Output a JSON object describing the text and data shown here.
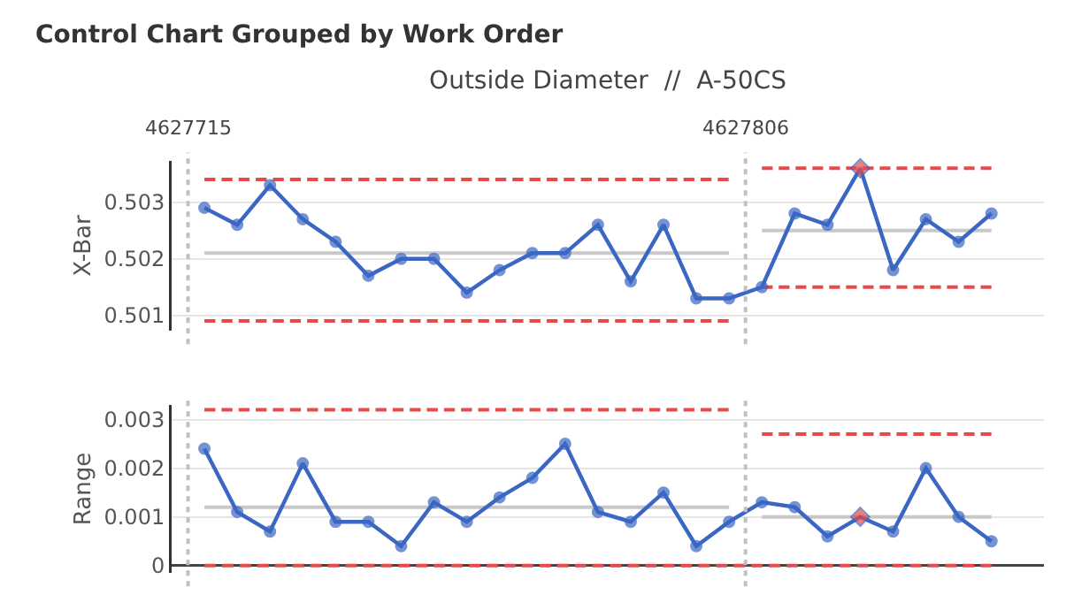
{
  "chart_data": [
    {
      "type": "line",
      "title": "Control Chart Grouped by Work Order",
      "subtitle": "Outside Diameter  //  A-50CS",
      "ylabel": "X-Bar",
      "ylim": [
        0.50073,
        0.50373
      ],
      "yticks": [
        0.501,
        0.502,
        0.503
      ],
      "grid": "y",
      "tick_labels": "y",
      "annotations": [
        "4627715",
        "4627806"
      ],
      "categories": [
        null,
        null,
        null,
        null,
        null,
        null,
        null,
        null,
        null,
        null,
        null,
        null,
        null,
        null,
        null,
        null,
        null,
        null,
        null,
        null,
        null,
        null,
        null,
        null,
        null
      ],
      "series": [
        {
          "type": "step",
          "color": "#e84a4a",
          "line_style": "dashed",
          "values": [
            0.5034,
            0.5034,
            0.5034,
            0.5034,
            0.5034,
            0.5034,
            0.5034,
            0.5034,
            0.5034,
            0.5034,
            0.5034,
            0.5034,
            0.5034,
            0.5034,
            0.5034,
            0.5034,
            0.5034,
            null,
            null,
            null,
            null,
            null,
            null,
            null,
            null
          ]
        },
        {
          "type": "step",
          "color": "#e84a4a",
          "line_style": "dashed",
          "values": [
            0.5009,
            0.5009,
            0.5009,
            0.5009,
            0.5009,
            0.5009,
            0.5009,
            0.5009,
            0.5009,
            0.5009,
            0.5009,
            0.5009,
            0.5009,
            0.5009,
            0.5009,
            0.5009,
            0.5009,
            null,
            null,
            null,
            null,
            null,
            null,
            null,
            null
          ]
        },
        {
          "type": "step",
          "color": "#c8c8c8",
          "line_style": "solid",
          "values": [
            0.5021,
            0.5021,
            0.5021,
            0.5021,
            0.5021,
            0.5021,
            0.5021,
            0.5021,
            0.5021,
            0.5021,
            0.5021,
            0.5021,
            0.5021,
            0.5021,
            0.5021,
            0.5021,
            0.5021,
            null,
            null,
            null,
            null,
            null,
            null,
            null,
            null
          ]
        },
        {
          "type": "step",
          "color": "#e84a4a",
          "line_style": "dashed",
          "values": [
            null,
            null,
            null,
            null,
            null,
            null,
            null,
            null,
            null,
            null,
            null,
            null,
            null,
            null,
            null,
            null,
            null,
            0.5036,
            0.5036,
            0.5036,
            0.5036,
            0.5036,
            0.5036,
            0.5036,
            0.5036
          ]
        },
        {
          "type": "step",
          "color": "#e84a4a",
          "line_style": "dashed",
          "values": [
            null,
            null,
            null,
            null,
            null,
            null,
            null,
            null,
            null,
            null,
            null,
            null,
            null,
            null,
            null,
            null,
            null,
            0.5015,
            0.5015,
            0.5015,
            0.5015,
            0.5015,
            0.5015,
            0.5015,
            0.5015
          ]
        },
        {
          "type": "step",
          "color": "#c8c8c8",
          "line_style": "solid",
          "values": [
            null,
            null,
            null,
            null,
            null,
            null,
            null,
            null,
            null,
            null,
            null,
            null,
            null,
            null,
            null,
            null,
            null,
            0.5025,
            0.5025,
            0.5025,
            0.5025,
            0.5025,
            0.5025,
            0.5025,
            0.5025
          ]
        },
        {
          "color": "#3a66c4",
          "line_style": "solid",
          "marker": "circle",
          "values": [
            0.5029,
            0.5026,
            0.5033,
            0.5027,
            0.5023,
            0.5017,
            0.502,
            0.502,
            0.5014,
            0.5018,
            0.5021,
            0.5021,
            0.5026,
            0.5016,
            0.5026,
            0.5013,
            0.5013,
            0.5015,
            0.5028,
            0.5026,
            0.5036,
            0.5018,
            0.5027,
            0.5023,
            0.5028
          ],
          "colors": [
            "#3a66c4",
            "#3a66c4",
            "#3a66c4",
            "#3a66c4",
            "#3a66c4",
            "#3a66c4",
            "#3a66c4",
            "#3a66c4",
            "#3a66c4",
            "#3a66c4",
            "#3a66c4",
            "#3a66c4",
            "#3a66c4",
            "#3a66c4",
            "#3a66c4",
            "#3a66c4",
            "#3a66c4",
            "#3a66c4",
            "#3a66c4",
            "#3a66c4",
            "#e84a4a",
            "#3a66c4",
            "#3a66c4",
            "#3a66c4",
            "#3a66c4"
          ]
        }
      ]
    },
    {
      "type": "line",
      "ylabel": "Range",
      "ylim": [
        -0.00015,
        0.0033
      ],
      "yticks": [
        0,
        0.001,
        0.002,
        0.003
      ],
      "grid": "y",
      "tick_labels": "y",
      "categories": [
        null,
        null,
        null,
        null,
        null,
        null,
        null,
        null,
        null,
        null,
        null,
        null,
        null,
        null,
        null,
        null,
        null,
        null,
        null,
        null,
        null,
        null,
        null,
        null,
        null
      ],
      "series": [
        {
          "type": "step",
          "color": "#e84a4a",
          "line_style": "dashed",
          "values": [
            0.0032,
            0.0032,
            0.0032,
            0.0032,
            0.0032,
            0.0032,
            0.0032,
            0.0032,
            0.0032,
            0.0032,
            0.0032,
            0.0032,
            0.0032,
            0.0032,
            0.0032,
            0.0032,
            0.0032,
            null,
            null,
            null,
            null,
            null,
            null,
            null,
            null
          ]
        },
        {
          "type": "step",
          "color": "#c8c8c8",
          "line_style": "solid",
          "values": [
            0.0012,
            0.0012,
            0.0012,
            0.0012,
            0.0012,
            0.0012,
            0.0012,
            0.0012,
            0.0012,
            0.0012,
            0.0012,
            0.0012,
            0.0012,
            0.0012,
            0.0012,
            0.0012,
            0.0012,
            null,
            null,
            null,
            null,
            null,
            null,
            null,
            null
          ]
        },
        {
          "type": "step",
          "color": "#e84a4a",
          "line_style": "dashed",
          "values": [
            null,
            null,
            null,
            null,
            null,
            null,
            null,
            null,
            null,
            null,
            null,
            null,
            null,
            null,
            null,
            null,
            null,
            0.0027,
            0.0027,
            0.0027,
            0.0027,
            0.0027,
            0.0027,
            0.0027,
            0.0027
          ]
        },
        {
          "type": "step",
          "color": "#c8c8c8",
          "line_style": "solid",
          "values": [
            null,
            null,
            null,
            null,
            null,
            null,
            null,
            null,
            null,
            null,
            null,
            null,
            null,
            null,
            null,
            null,
            null,
            0.001,
            0.001,
            0.001,
            0.001,
            0.001,
            0.001,
            0.001,
            0.001
          ]
        },
        {
          "type": "step",
          "color": "#e84a4a",
          "line_style": "dashed",
          "values": [
            0,
            0,
            0,
            0,
            0,
            0,
            0,
            0,
            0,
            0,
            0,
            0,
            0,
            0,
            0,
            0,
            0,
            0,
            0,
            0,
            0,
            0,
            0,
            0,
            0
          ]
        },
        {
          "color": "#3a66c4",
          "line_style": "solid",
          "marker": "circle",
          "values": [
            0.0024,
            0.0011,
            0.0007,
            0.0021,
            0.0009,
            0.0009,
            0.0004,
            0.0013,
            0.0009,
            0.0014,
            0.0018,
            0.0025,
            0.0011,
            0.0009,
            0.0015,
            0.0004,
            0.0009,
            0.0013,
            0.0012,
            0.0006,
            0.001,
            0.0007,
            0.002,
            0.001,
            0.0005
          ],
          "colors": [
            "#3a66c4",
            "#3a66c4",
            "#3a66c4",
            "#3a66c4",
            "#3a66c4",
            "#3a66c4",
            "#3a66c4",
            "#3a66c4",
            "#3a66c4",
            "#3a66c4",
            "#3a66c4",
            "#3a66c4",
            "#3a66c4",
            "#3a66c4",
            "#3a66c4",
            "#3a66c4",
            "#3a66c4",
            "#3a66c4",
            "#3a66c4",
            "#3a66c4",
            "#e84a4a",
            "#3a66c4",
            "#3a66c4",
            "#3a66c4",
            "#3a66c4"
          ]
        }
      ]
    }
  ]
}
